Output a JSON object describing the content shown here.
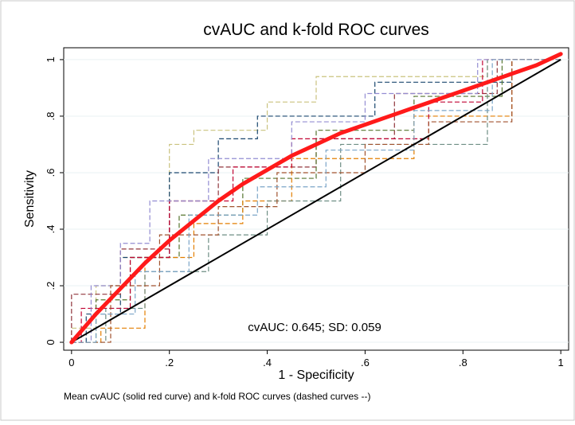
{
  "chart_data": {
    "type": "line",
    "title": "cvAUC and k-fold ROC curves",
    "x_label": "1 - Specificity",
    "y_label": "Sensitivity",
    "annotation": "cvAUC: 0.645; SD: 0.059",
    "note": "Mean cvAUC (solid red curve) and k-fold ROC curves (dashed curves --)",
    "xlim": [
      -0.016,
      1.016
    ],
    "ylim": [
      -0.028,
      1.042
    ],
    "xticks": [
      0,
      {
        "value": 0.2,
        "label": ".2"
      },
      {
        "value": 0.4,
        "label": ".4"
      },
      {
        "value": 0.6,
        "label": ".6"
      },
      {
        "value": 0.8,
        "label": ".8"
      },
      1
    ],
    "yticks": [
      0,
      {
        "value": 0.2,
        "label": ".2"
      },
      {
        "value": 0.4,
        "label": ".4"
      },
      {
        "value": 0.6,
        "label": ".6"
      },
      {
        "value": 0.8,
        "label": ".8"
      },
      1
    ],
    "grid": true,
    "series": [
      {
        "color": "#cac27e",
        "line_style": "dashed",
        "x": [
          0,
          0,
          0.05,
          0.05,
          0.1,
          0.1,
          0.2,
          0.2,
          0.25,
          0.25,
          0.4,
          0.4,
          0.5,
          0.5,
          0.85,
          0.85,
          1
        ],
        "values": [
          0,
          0.05,
          0.05,
          0.2,
          0.2,
          0.3,
          0.3,
          0.7,
          0.7,
          0.75,
          0.75,
          0.85,
          0.85,
          0.94,
          0.94,
          1,
          1
        ]
      },
      {
        "color": "#1a476f",
        "line_style": "dashed",
        "x": [
          0,
          0.03,
          0.03,
          0.1,
          0.1,
          0.2,
          0.2,
          0.3,
          0.3,
          0.38,
          0.38,
          0.62,
          0.62,
          0.9,
          0.9,
          1
        ],
        "values": [
          0,
          0,
          0.1,
          0.1,
          0.3,
          0.3,
          0.6,
          0.6,
          0.72,
          0.72,
          0.8,
          0.8,
          0.92,
          0.92,
          1,
          1
        ]
      },
      {
        "color": "#90353b",
        "line_style": "dashed",
        "x": [
          0,
          0,
          0.1,
          0.1,
          0.2,
          0.2,
          0.3,
          0.3,
          0.5,
          0.5,
          0.66,
          0.66,
          0.87,
          0.87,
          1
        ],
        "values": [
          0,
          0.17,
          0.17,
          0.33,
          0.33,
          0.5,
          0.5,
          0.62,
          0.62,
          0.72,
          0.72,
          0.88,
          0.88,
          1,
          1
        ]
      },
      {
        "color": "#55752f",
        "line_style": "dashed",
        "x": [
          0,
          0.05,
          0.05,
          0.12,
          0.12,
          0.22,
          0.22,
          0.35,
          0.35,
          0.5,
          0.5,
          0.7,
          0.7,
          0.88,
          0.88,
          1
        ],
        "values": [
          0,
          0,
          0.15,
          0.15,
          0.3,
          0.3,
          0.45,
          0.45,
          0.58,
          0.58,
          0.75,
          0.75,
          0.87,
          0.87,
          1,
          1
        ]
      },
      {
        "color": "#e37e00",
        "line_style": "dashed",
        "x": [
          0,
          0.06,
          0.06,
          0.15,
          0.15,
          0.25,
          0.25,
          0.35,
          0.35,
          0.45,
          0.45,
          0.7,
          0.7,
          0.9,
          0.9,
          1
        ],
        "values": [
          0,
          0,
          0.05,
          0.05,
          0.3,
          0.3,
          0.42,
          0.42,
          0.5,
          0.5,
          0.65,
          0.65,
          0.8,
          0.8,
          1,
          1
        ]
      },
      {
        "color": "#6e8e84",
        "line_style": "dashed",
        "x": [
          0,
          0.07,
          0.07,
          0.15,
          0.15,
          0.28,
          0.28,
          0.4,
          0.4,
          0.55,
          0.55,
          0.85,
          0.85,
          1
        ],
        "values": [
          0,
          0,
          0.12,
          0.12,
          0.25,
          0.25,
          0.38,
          0.38,
          0.5,
          0.5,
          0.7,
          0.7,
          1,
          1
        ]
      },
      {
        "color": "#c10534",
        "line_style": "dashed",
        "x": [
          0,
          0.02,
          0.02,
          0.12,
          0.12,
          0.2,
          0.2,
          0.33,
          0.33,
          0.45,
          0.45,
          0.73,
          0.73,
          0.84,
          0.84,
          1
        ],
        "values": [
          0,
          0,
          0.12,
          0.12,
          0.3,
          0.3,
          0.5,
          0.5,
          0.62,
          0.62,
          0.72,
          0.72,
          0.85,
          0.85,
          1,
          1
        ]
      },
      {
        "color": "#938dd2",
        "line_style": "dashed",
        "x": [
          0,
          0.04,
          0.04,
          0.1,
          0.1,
          0.16,
          0.16,
          0.28,
          0.28,
          0.45,
          0.45,
          0.6,
          0.6,
          0.83,
          0.83,
          1
        ],
        "values": [
          0,
          0,
          0.2,
          0.2,
          0.35,
          0.35,
          0.5,
          0.5,
          0.65,
          0.65,
          0.78,
          0.78,
          0.88,
          0.88,
          1,
          1
        ]
      },
      {
        "color": "#a0522d",
        "line_style": "dashed",
        "x": [
          0,
          0.08,
          0.08,
          0.18,
          0.18,
          0.3,
          0.3,
          0.42,
          0.42,
          0.6,
          0.6,
          0.73,
          0.73,
          0.9,
          0.9,
          1
        ],
        "values": [
          0,
          0,
          0.2,
          0.2,
          0.38,
          0.38,
          0.48,
          0.48,
          0.6,
          0.6,
          0.7,
          0.7,
          0.78,
          0.78,
          1,
          1
        ]
      },
      {
        "color": "#7ba5c8",
        "line_style": "dashed",
        "x": [
          0,
          0.05,
          0.05,
          0.13,
          0.13,
          0.24,
          0.24,
          0.38,
          0.38,
          0.52,
          0.52,
          0.7,
          0.7,
          0.86,
          0.86,
          1
        ],
        "values": [
          0,
          0,
          0.1,
          0.1,
          0.25,
          0.25,
          0.45,
          0.45,
          0.55,
          0.55,
          0.68,
          0.68,
          0.82,
          0.82,
          1,
          1
        ]
      },
      {
        "color": "#000000",
        "line_style": "solid",
        "x": [
          0,
          1
        ],
        "values": [
          0,
          1
        ]
      },
      {
        "color": "#ff1a1a",
        "line_style": "thick",
        "x": [
          0,
          0.05,
          0.1,
          0.15,
          0.2,
          0.25,
          0.3,
          0.35,
          0.4,
          0.45,
          0.5,
          0.55,
          0.6,
          0.65,
          0.7,
          0.75,
          0.8,
          0.85,
          0.9,
          0.95,
          1
        ],
        "values": [
          0,
          0.1,
          0.19,
          0.28,
          0.36,
          0.43,
          0.5,
          0.56,
          0.61,
          0.66,
          0.7,
          0.74,
          0.77,
          0.8,
          0.83,
          0.86,
          0.89,
          0.92,
          0.95,
          0.98,
          1.02
        ]
      }
    ]
  }
}
